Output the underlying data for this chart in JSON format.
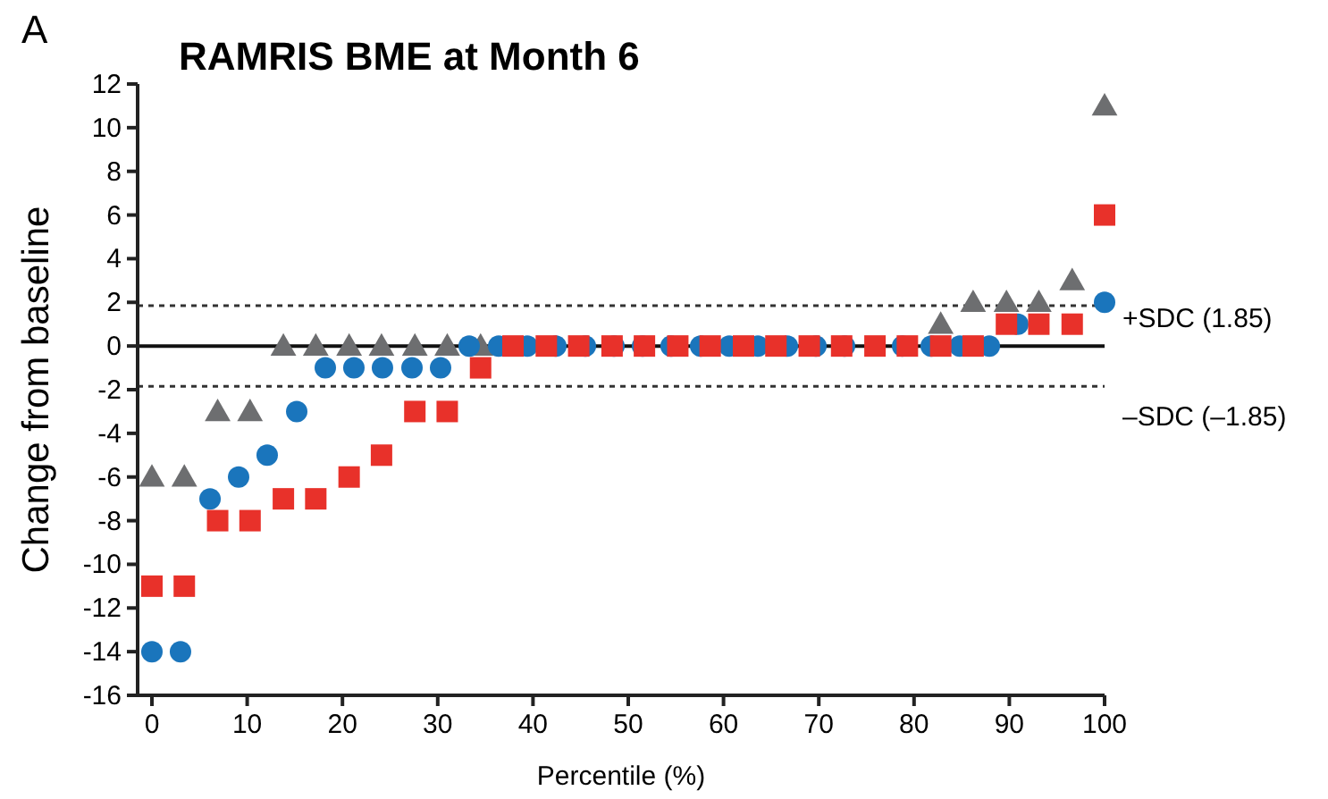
{
  "chart_data": {
    "type": "scatter",
    "title": "RAMRIS BME at Month 6",
    "xlabel": "Percentile (%)",
    "ylabel": "Change from baseline",
    "annotations": [
      "A"
    ],
    "series": [
      {
        "color": "#6d6e70",
        "marker": "triangle",
        "x": [
          0,
          3.4,
          6.9,
          10.3,
          13.8,
          17.2,
          20.7,
          24.1,
          27.6,
          31,
          34.5,
          37.9,
          41.4,
          44.8,
          48.3,
          51.7,
          55.2,
          58.6,
          62.1,
          65.5,
          69,
          72.4,
          75.9,
          79.3,
          82.8,
          86.2,
          89.7,
          93.1,
          96.6,
          100
        ],
        "values": [
          -6,
          -6,
          -3,
          -3,
          0,
          0,
          0,
          0,
          0,
          0,
          0,
          null,
          null,
          null,
          null,
          null,
          null,
          null,
          null,
          null,
          null,
          null,
          null,
          null,
          1,
          2,
          2,
          2,
          3,
          11
        ]
      },
      {
        "color": "#1a75bc",
        "marker": "circle",
        "x": [
          0,
          3,
          6.1,
          9.1,
          12.1,
          15.2,
          18.2,
          21.2,
          24.2,
          27.3,
          30.3,
          33.3,
          36.4,
          39.4,
          42.4,
          45.5,
          48.5,
          51.5,
          54.5,
          57.6,
          60.6,
          63.6,
          66.7,
          69.7,
          72.7,
          75.8,
          78.8,
          81.8,
          84.8,
          87.9,
          90.9,
          93.9,
          97,
          100
        ],
        "values": [
          -14,
          -14,
          -7,
          -6,
          -5,
          -3,
          -1,
          -1,
          -1,
          -1,
          -1,
          0,
          0,
          0,
          0,
          0,
          0,
          0,
          0,
          0,
          0,
          0,
          0,
          0,
          0,
          null,
          0,
          0,
          0,
          0,
          1,
          null,
          null,
          2
        ]
      },
      {
        "color": "#e8312a",
        "marker": "square",
        "x": [
          0,
          3.4,
          6.9,
          10.3,
          13.8,
          17.2,
          20.7,
          24.1,
          27.6,
          31,
          34.5,
          37.9,
          41.4,
          44.8,
          48.3,
          51.7,
          55.2,
          58.6,
          62.1,
          65.5,
          69,
          72.4,
          75.9,
          79.3,
          82.8,
          86.2,
          89.7,
          93.1,
          96.6,
          100
        ],
        "values": [
          -11,
          -11,
          -8,
          -8,
          -7,
          -7,
          -6,
          -5,
          -3,
          -3,
          -1,
          0,
          0,
          0,
          0,
          0,
          0,
          0,
          0,
          0,
          0,
          0,
          0,
          0,
          0,
          0,
          1,
          1,
          1,
          6
        ]
      }
    ],
    "xlim": [
      -1.5,
      100
    ],
    "xticks": [
      0,
      10,
      20,
      30,
      40,
      50,
      60,
      70,
      80,
      90,
      100
    ],
    "ylim": [
      -16,
      12
    ],
    "yticks": [
      -16,
      -14,
      -12,
      -10,
      -8,
      -6,
      -4,
      -2,
      0,
      2,
      4,
      6,
      8,
      10,
      12
    ],
    "ref_lines": [
      {
        "axis": "y",
        "value": 1.85,
        "label": "+SDC (1.85)",
        "line_style": "dashed",
        "color": "#333333"
      },
      {
        "axis": "y",
        "value": -1.85,
        "label": "–SDC (–1.85)",
        "line_style": "dashed",
        "color": "#333333"
      },
      {
        "axis": "y",
        "value": 0,
        "line_style": "solid",
        "color": "#111111"
      }
    ],
    "grid": false
  }
}
